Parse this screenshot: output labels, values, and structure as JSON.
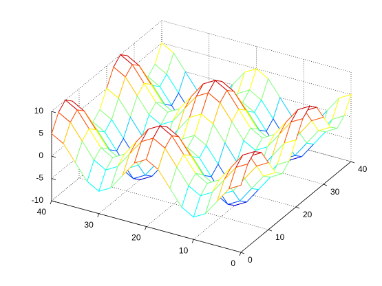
{
  "chart_data": {
    "type": "mesh",
    "colormap": "jet",
    "grid": true,
    "x": [
      0,
      2.5,
      5,
      7.5,
      10,
      12.5,
      15,
      17.5,
      20,
      22.5,
      25,
      27.5,
      30,
      32.5,
      35,
      37.5,
      40
    ],
    "y": [
      0,
      2.5,
      5,
      7.5,
      10,
      12.5,
      15,
      17.5,
      20,
      22.5,
      25,
      27.5,
      30,
      32.5,
      35,
      37.5,
      40
    ],
    "z": [
      [
        5,
        8.5,
        10,
        8.5,
        5,
        1.5,
        0,
        1.5,
        5,
        8.5,
        10,
        8.5,
        5,
        1.5,
        0,
        1.5,
        5
      ],
      [
        3.5,
        7,
        8.5,
        7,
        3.5,
        0,
        -1.5,
        0,
        3.5,
        7,
        8.5,
        7,
        3.5,
        0,
        -1.5,
        0,
        3.5
      ],
      [
        0,
        3.5,
        5,
        3.5,
        0,
        -3.5,
        -5,
        -3.5,
        0,
        3.5,
        5,
        3.5,
        0,
        -3.5,
        -5,
        -3.5,
        0
      ],
      [
        -3.5,
        0,
        1.5,
        0,
        -3.5,
        -7,
        -8.5,
        -7,
        -3.5,
        0,
        1.5,
        0,
        -3.5,
        -7,
        -8.5,
        -7,
        -3.5
      ],
      [
        -5,
        -1.5,
        0,
        -1.5,
        -5,
        -8.5,
        -10,
        -8.5,
        -5,
        -1.5,
        0,
        -1.5,
        -5,
        -8.5,
        -10,
        -8.5,
        -5
      ],
      [
        -3.5,
        0,
        1.5,
        0,
        -3.5,
        -7,
        -8.5,
        -7,
        -3.5,
        0,
        1.5,
        0,
        -3.5,
        -7,
        -8.5,
        -7,
        -3.5
      ],
      [
        0,
        3.5,
        5,
        3.5,
        0,
        -3.5,
        -5,
        -3.5,
        0,
        3.5,
        5,
        3.5,
        0,
        -3.5,
        -5,
        -3.5,
        0
      ],
      [
        3.5,
        7,
        8.5,
        7,
        3.5,
        0,
        -1.5,
        0,
        3.5,
        7,
        8.5,
        7,
        3.5,
        0,
        -1.5,
        0,
        3.5
      ],
      [
        5,
        8.5,
        10,
        8.5,
        5,
        1.5,
        0,
        1.5,
        5,
        8.5,
        10,
        8.5,
        5,
        1.5,
        0,
        1.5,
        5
      ],
      [
        3.5,
        7,
        8.5,
        7,
        3.5,
        0,
        -1.5,
        0,
        3.5,
        7,
        8.5,
        7,
        3.5,
        0,
        -1.5,
        0,
        3.5
      ],
      [
        0,
        3.5,
        5,
        3.5,
        0,
        -3.5,
        -5,
        -3.5,
        0,
        3.5,
        5,
        3.5,
        0,
        -3.5,
        -5,
        -3.5,
        0
      ],
      [
        -3.5,
        0,
        1.5,
        0,
        -3.5,
        -7,
        -8.5,
        -7,
        -3.5,
        0,
        1.5,
        0,
        -3.5,
        -7,
        -8.5,
        -7,
        -3.5
      ],
      [
        -5,
        -1.5,
        0,
        -1.5,
        -5,
        -8.5,
        -10,
        -8.5,
        -5,
        -1.5,
        0,
        -1.5,
        -5,
        -8.5,
        -10,
        -8.5,
        -5
      ],
      [
        -3.5,
        0,
        1.5,
        0,
        -3.5,
        -7,
        -8.5,
        -7,
        -3.5,
        0,
        1.5,
        0,
        -3.5,
        -7,
        -8.5,
        -7,
        -3.5
      ],
      [
        0,
        3.5,
        5,
        3.5,
        0,
        -3.5,
        -5,
        -3.5,
        0,
        3.5,
        5,
        3.5,
        0,
        -3.5,
        -5,
        -3.5,
        0
      ],
      [
        3.5,
        7,
        8.5,
        7,
        3.5,
        0,
        -1.5,
        0,
        3.5,
        7,
        8.5,
        7,
        3.5,
        0,
        -1.5,
        0,
        3.5
      ],
      [
        5,
        8.5,
        10,
        8.5,
        5,
        1.5,
        0,
        1.5,
        5,
        8.5,
        10,
        8.5,
        5,
        1.5,
        0,
        1.5,
        5
      ]
    ],
    "xlim": [
      0,
      40
    ],
    "xticks": [
      0,
      10,
      20,
      30,
      40
    ],
    "ylim": [
      0,
      40
    ],
    "yticks": [
      0,
      10,
      20,
      30,
      40
    ],
    "zlim": [
      -10,
      10
    ],
    "zticks": [
      -10,
      -5,
      0,
      5,
      10
    ]
  }
}
